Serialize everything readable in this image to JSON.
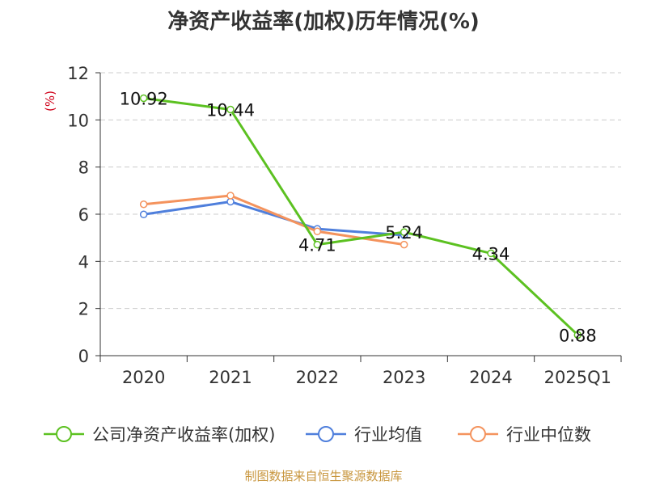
{
  "chart_data": {
    "type": "line",
    "title": "净资产收益率(加权)历年情况(%)",
    "ylabel": "(%)",
    "xlabel": "",
    "categories": [
      "2020",
      "2021",
      "2022",
      "2023",
      "2024",
      "2025Q1"
    ],
    "ylim": [
      0,
      12
    ],
    "yticks": [
      "0",
      "2",
      "4",
      "6",
      "8",
      "10",
      "12"
    ],
    "grid": true,
    "legend_position": "bottom",
    "series": [
      {
        "name": "公司净资产收益率(加权)",
        "color": "#5cc121",
        "values": [
          10.92,
          10.44,
          4.71,
          5.24,
          4.34,
          0.88
        ],
        "labels": [
          "10.92",
          "10.44",
          "4.71",
          "5.24",
          "4.34",
          "0.88"
        ]
      },
      {
        "name": "行业均值",
        "color": "#4f7fdc",
        "values": [
          5.99,
          6.53,
          5.38,
          5.11,
          null,
          null
        ]
      },
      {
        "name": "行业中位数",
        "color": "#f4935d",
        "values": [
          6.42,
          6.79,
          5.27,
          4.71,
          null,
          null
        ]
      }
    ]
  },
  "source": "制图数据来自恒生聚源数据库",
  "colors": {
    "axis": "#333333",
    "grid": "#cccccc",
    "ylabel": "#d0021b",
    "source": "#c8963e"
  }
}
